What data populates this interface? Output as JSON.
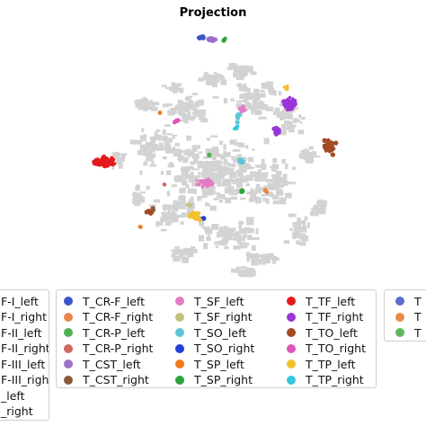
{
  "chart_data": {
    "type": "scatter",
    "title": "Projection",
    "xlabel": "",
    "ylabel": "",
    "grid": false,
    "axes_visible": false,
    "background_color": "#d3d3d3",
    "legend_placement": "bottom",
    "series": [
      {
        "name": "T_CR-F_left",
        "color": "#3b55c9"
      },
      {
        "name": "T_CR-F_right",
        "color": "#e8884a"
      },
      {
        "name": "T_CR-P_left",
        "color": "#4fb04f"
      },
      {
        "name": "T_CR-P_right",
        "color": "#cf6a62"
      },
      {
        "name": "T_CST_left",
        "color": "#9e6fc8"
      },
      {
        "name": "T_CST_right",
        "color": "#8b5a3c"
      },
      {
        "name": "T_SF_left",
        "color": "#e07cc3"
      },
      {
        "name": "T_SF_right",
        "color": "#c3c183"
      },
      {
        "name": "T_SO_left",
        "color": "#5ec6d6"
      },
      {
        "name": "T_SO_right",
        "color": "#1f3fd6"
      },
      {
        "name": "T_SP_left",
        "color": "#f07a1e"
      },
      {
        "name": "T_SP_right",
        "color": "#2aa33a"
      },
      {
        "name": "T_TF_left",
        "color": "#e41a1c"
      },
      {
        "name": "T_TF_right",
        "color": "#9a35d8"
      },
      {
        "name": "T_TO_left",
        "color": "#a24a22"
      },
      {
        "name": "T_TO_right",
        "color": "#e055b8"
      },
      {
        "name": "T_TP_left",
        "color": "#f2c12e"
      },
      {
        "name": "T_TP_right",
        "color": "#33c8dc"
      }
    ],
    "partial_legend_left": [
      {
        "label": "F-I_left",
        "color": "#3b55c9"
      },
      {
        "label": "F-I_right",
        "color": "#e8884a"
      },
      {
        "label": "F-II_left",
        "color": "#4fb04f"
      },
      {
        "label": "F-II_right",
        "color": "#cf6a62"
      },
      {
        "label": "F-III_left",
        "color": "#9e6fc8"
      },
      {
        "label": "F-III_right",
        "color": "#8b5a3c"
      },
      {
        "label": "_left",
        "color": "#e07cc3"
      },
      {
        "label": "_right",
        "color": "#c3c183"
      }
    ],
    "partial_legend_right": [
      {
        "label": "T",
        "color": "#5b6fc8"
      },
      {
        "label": "T",
        "color": "#e8884a"
      },
      {
        "label": "T",
        "color": "#5fb85f"
      }
    ]
  }
}
